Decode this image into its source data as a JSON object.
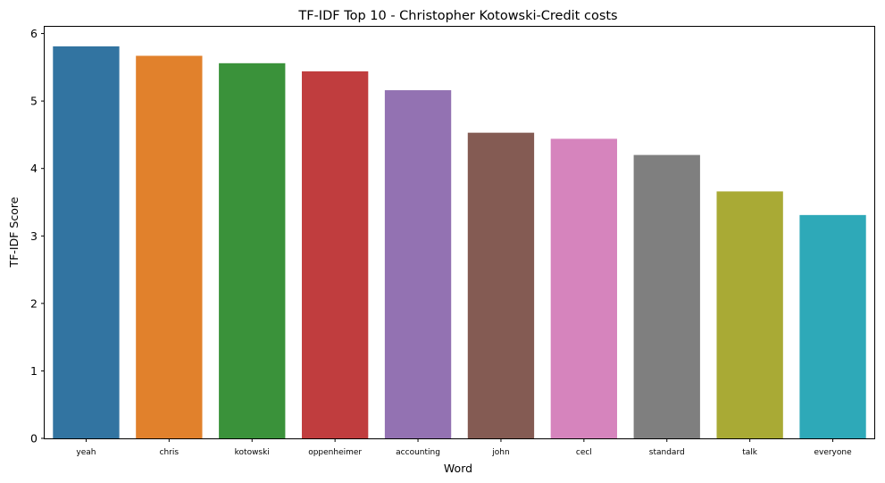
{
  "chart_data": {
    "type": "bar",
    "title": "TF-IDF Top 10 - Christopher Kotowski-Credit costs",
    "xlabel": "Word",
    "ylabel": "TF-IDF Score",
    "categories": [
      "yeah",
      "chris",
      "kotowski",
      "oppenheimer",
      "accounting",
      "john",
      "cecl",
      "standard",
      "talk",
      "everyone"
    ],
    "values": [
      5.81,
      5.67,
      5.56,
      5.44,
      5.16,
      4.53,
      4.44,
      4.2,
      3.66,
      3.31
    ],
    "colors": [
      "#3274a1",
      "#e1812c",
      "#3a923a",
      "#c03d3e",
      "#9372b2",
      "#845b53",
      "#d684bd",
      "#7f7f7f",
      "#a9aa35",
      "#2ea9b8"
    ],
    "ylim": [
      0,
      6.1
    ],
    "yticks": [
      "0",
      "1",
      "2",
      "3",
      "4",
      "5",
      "6"
    ],
    "grid": false,
    "legend": "none"
  }
}
